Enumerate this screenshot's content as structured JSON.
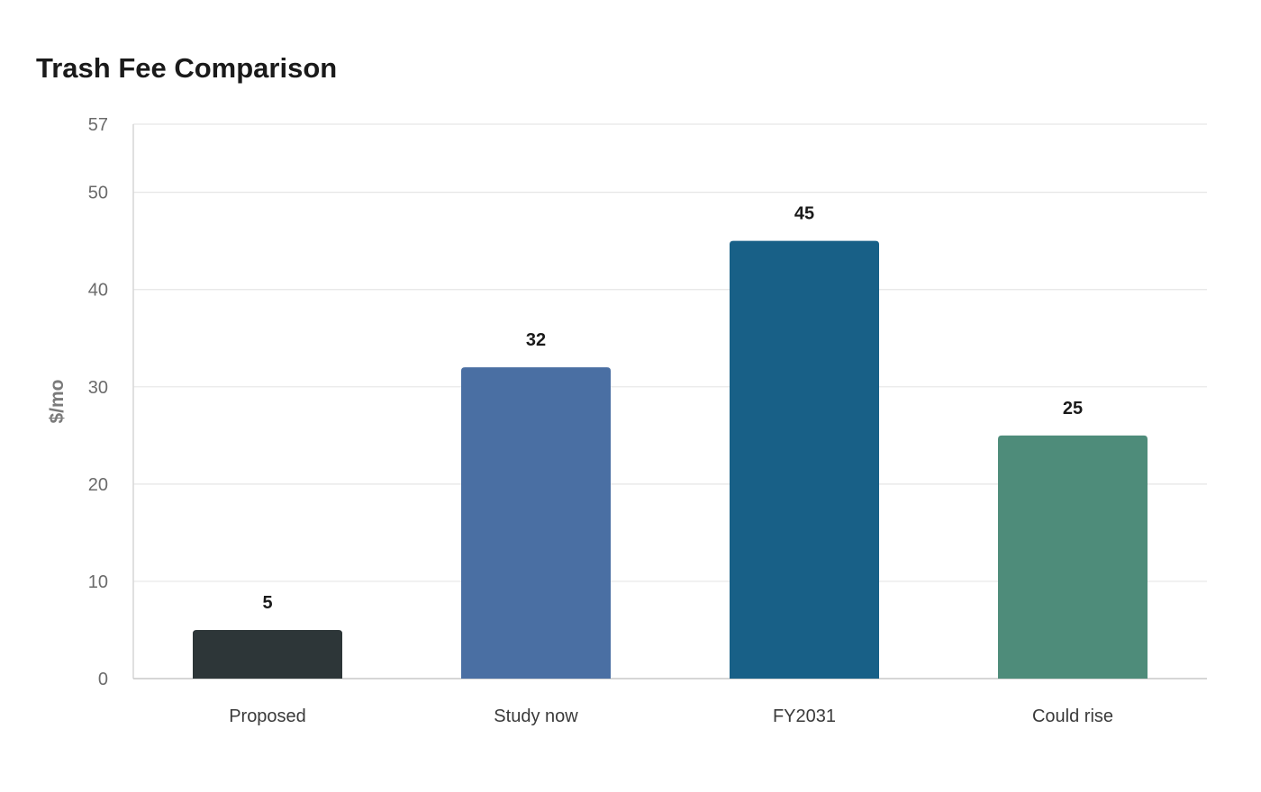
{
  "chart_data": {
    "type": "bar",
    "title": "Trash Fee Comparison",
    "xlabel": "",
    "ylabel": "$/mo",
    "categories": [
      "Proposed",
      "Study now",
      "FY2031",
      "Could rise"
    ],
    "values": [
      5,
      32,
      45,
      25
    ],
    "colors": [
      "#2d3638",
      "#4a6fa3",
      "#186087",
      "#4e8c7a"
    ],
    "ylim": [
      0,
      57
    ],
    "yticks": [
      0,
      10,
      20,
      30,
      40,
      50,
      57
    ],
    "grid": true,
    "data_labels": [
      "5",
      "32",
      "45",
      "25"
    ]
  }
}
